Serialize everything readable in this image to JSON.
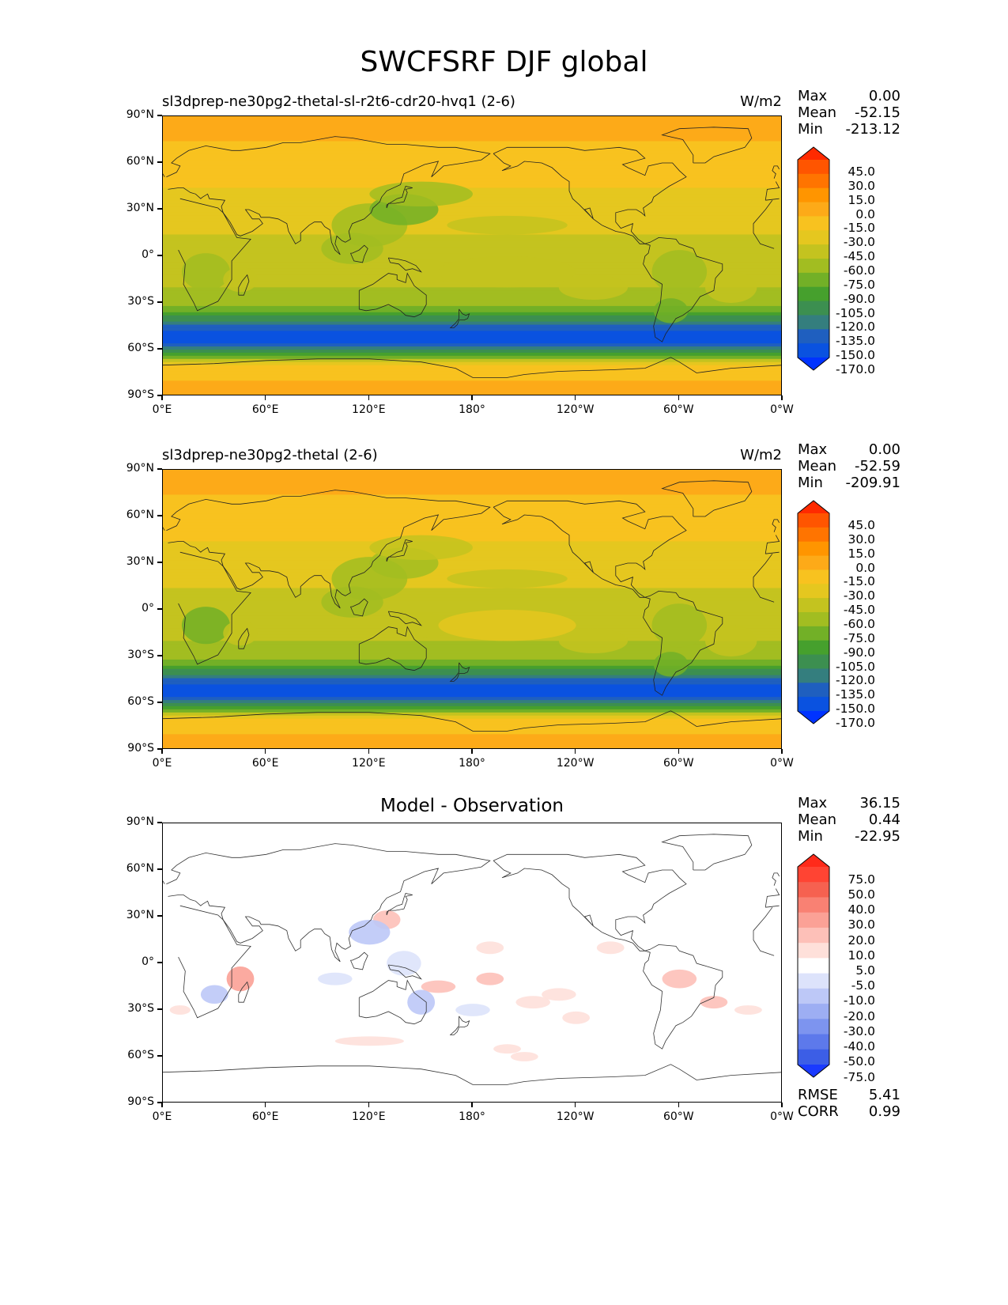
{
  "title": "SWCFSRF DJF global",
  "chart_data": [
    {
      "type": "heatmap",
      "panel": "test",
      "title": "sl3dprep-ne30pg2-thetal-sl-r2t6-cdr20-hvq1 (2-6)",
      "units": "W/m2",
      "stats": {
        "max_label": "Max",
        "max": "0.00",
        "mean_label": "Mean",
        "mean": "-52.15",
        "min_label": "Min",
        "min": "-213.12"
      },
      "x_ticks": [
        "0°E",
        "60°E",
        "120°E",
        "180°",
        "120°W",
        "60°W",
        "0°W"
      ],
      "y_ticks": [
        "90°N",
        "60°N",
        "30°N",
        "0°",
        "30°S",
        "60°S",
        "90°S"
      ],
      "colorbar_levels": [
        "45.0",
        "30.0",
        "15.0",
        "0.0",
        "-15.0",
        "-30.0",
        "-45.0",
        "-60.0",
        "-75.0",
        "-90.0",
        "-105.0",
        "-120.0",
        "-135.0",
        "-150.0",
        "-170.0"
      ],
      "colorbar_colors": [
        "#ff2a00",
        "#ff5500",
        "#ff7400",
        "#ff9500",
        "#fdaa18",
        "#f8c21f",
        "#e5c71f",
        "#c4c31f",
        "#a2bd21",
        "#72b027",
        "#46a02d",
        "#3c8f50",
        "#347e7e",
        "#1f5fbf",
        "#0a52e0",
        "#0033ff"
      ],
      "colorbar_extend": "both",
      "band_profile": [
        {
          "lat": 90,
          "value": -10
        },
        {
          "lat": 60,
          "value": -20
        },
        {
          "lat": 45,
          "value": -30
        },
        {
          "lat": 30,
          "value": -40
        },
        {
          "lat": 15,
          "value": -45
        },
        {
          "lat": 0,
          "value": -50
        },
        {
          "lat": -15,
          "value": -55
        },
        {
          "lat": -30,
          "value": -70
        },
        {
          "lat": -40,
          "value": -110
        },
        {
          "lat": -45,
          "value": -145
        },
        {
          "lat": -55,
          "value": -165
        },
        {
          "lat": -65,
          "value": -80
        },
        {
          "lat": -70,
          "value": -20
        },
        {
          "lat": -90,
          "value": -10
        }
      ]
    },
    {
      "type": "heatmap",
      "panel": "reference",
      "title": "sl3dprep-ne30pg2-thetal (2-6)",
      "units": "W/m2",
      "stats": {
        "max_label": "Max",
        "max": "0.00",
        "mean_label": "Mean",
        "mean": "-52.59",
        "min_label": "Min",
        "min": "-209.91"
      },
      "x_ticks": [
        "0°E",
        "60°E",
        "120°E",
        "180°",
        "120°W",
        "60°W",
        "0°W"
      ],
      "y_ticks": [
        "90°N",
        "60°N",
        "30°N",
        "0°",
        "30°S",
        "60°S",
        "90°S"
      ],
      "colorbar_levels": [
        "45.0",
        "30.0",
        "15.0",
        "0.0",
        "-15.0",
        "-30.0",
        "-45.0",
        "-60.0",
        "-75.0",
        "-90.0",
        "-105.0",
        "-120.0",
        "-135.0",
        "-150.0",
        "-170.0"
      ],
      "colorbar_colors": [
        "#ff2a00",
        "#ff5500",
        "#ff7400",
        "#ff9500",
        "#fdaa18",
        "#f8c21f",
        "#e5c71f",
        "#c4c31f",
        "#a2bd21",
        "#72b027",
        "#46a02d",
        "#3c8f50",
        "#347e7e",
        "#1f5fbf",
        "#0a52e0",
        "#0033ff"
      ],
      "colorbar_extend": "both",
      "band_profile": [
        {
          "lat": 90,
          "value": -10
        },
        {
          "lat": 60,
          "value": -20
        },
        {
          "lat": 45,
          "value": -30
        },
        {
          "lat": 30,
          "value": -40
        },
        {
          "lat": 15,
          "value": -45
        },
        {
          "lat": 0,
          "value": -50
        },
        {
          "lat": -15,
          "value": -55
        },
        {
          "lat": -30,
          "value": -70
        },
        {
          "lat": -40,
          "value": -110
        },
        {
          "lat": -45,
          "value": -145
        },
        {
          "lat": -55,
          "value": -165
        },
        {
          "lat": -65,
          "value": -80
        },
        {
          "lat": -70,
          "value": -20
        },
        {
          "lat": -90,
          "value": -10
        }
      ]
    },
    {
      "type": "heatmap",
      "panel": "difference",
      "title": "Model - Observation",
      "units": "",
      "stats": {
        "max_label": "Max",
        "max": "36.15",
        "mean_label": "Mean",
        "mean": "0.44",
        "min_label": "Min",
        "min": "-22.95"
      },
      "error_stats": {
        "rmse_label": "RMSE",
        "rmse": "5.41",
        "corr_label": "CORR",
        "corr": "0.99"
      },
      "x_ticks": [
        "0°E",
        "60°E",
        "120°E",
        "180°",
        "120°W",
        "60°W",
        "0°W"
      ],
      "y_ticks": [
        "90°N",
        "60°N",
        "30°N",
        "0°",
        "30°S",
        "60°S",
        "90°S"
      ],
      "colorbar_levels": [
        "75.0",
        "50.0",
        "40.0",
        "30.0",
        "20.0",
        "10.0",
        "5.0",
        "-5.0",
        "-10.0",
        "-20.0",
        "-30.0",
        "-40.0",
        "-50.0",
        "-75.0"
      ],
      "colorbar_colors": [
        "#ff2a1a",
        "#ff4433",
        "#f66150",
        "#f98173",
        "#fba196",
        "#fdc0b8",
        "#fee0da",
        "#ffffff",
        "#dde3fb",
        "#bdc8f7",
        "#9daef3",
        "#7d94ef",
        "#5d79eb",
        "#3c5ee6",
        "#1a3aff"
      ],
      "colorbar_extend": "both"
    }
  ]
}
